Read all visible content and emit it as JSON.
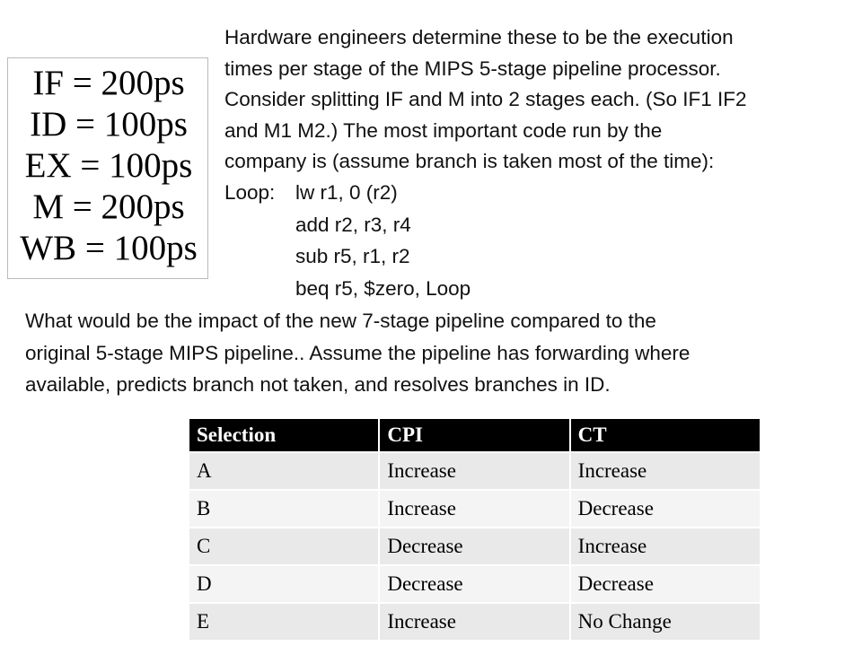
{
  "stages": [
    "IF = 200ps",
    "ID = 100ps",
    "EX = 100ps",
    "M = 200ps",
    "WB = 100ps"
  ],
  "intro": [
    "Hardware engineers determine these to be the execution",
    "times per stage of the MIPS 5-stage pipeline processor.",
    "Consider splitting IF and M into 2 stages each.  (So IF1 IF2",
    "and M1 M2.)  The most important code run by the",
    "company is (assume branch is taken most of the time):"
  ],
  "code": {
    "label": "Loop:",
    "lines": [
      "lw r1, 0 (r2)",
      "add r2, r3, r4",
      "sub r5, r1, r2",
      "beq r5, $zero, Loop"
    ]
  },
  "question": [
    "What would be the impact of the new 7-stage pipeline compared to the",
    "original 5-stage MIPS pipeline..  Assume the pipeline has forwarding where",
    "available, predicts branch not taken, and resolves branches in ID."
  ],
  "table": {
    "header": [
      "Selection",
      "CPI",
      "CT"
    ],
    "rows": [
      [
        "A",
        "Increase",
        "Increase"
      ],
      [
        "B",
        "Increase",
        "Decrease"
      ],
      [
        "C",
        "Decrease",
        "Increase"
      ],
      [
        "D",
        "Decrease",
        "Decrease"
      ],
      [
        "E",
        "Increase",
        "No Change"
      ]
    ]
  }
}
